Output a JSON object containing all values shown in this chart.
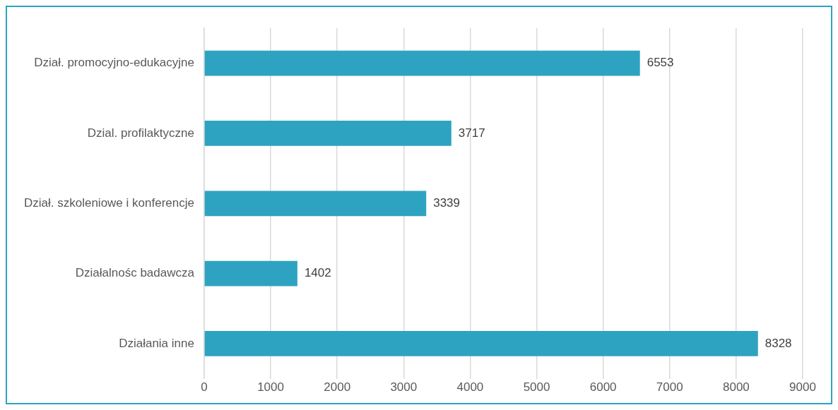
{
  "chart_data": {
    "type": "bar",
    "orientation": "horizontal",
    "categories": [
      "Dział. promocyjno-edukacyjne",
      "Dzial. profilaktyczne",
      "Dział. szkoleniowe i konferencje",
      "Działalnośc badawcza",
      "Działania inne"
    ],
    "values": [
      6553,
      3717,
      3339,
      1402,
      8328
    ],
    "color": "#2ea3c1",
    "xlim": [
      0,
      9000
    ],
    "xticks": [
      0,
      1000,
      2000,
      3000,
      4000,
      5000,
      6000,
      7000,
      8000,
      9000
    ],
    "grid": "x",
    "data_labels": true,
    "legend": false
  }
}
